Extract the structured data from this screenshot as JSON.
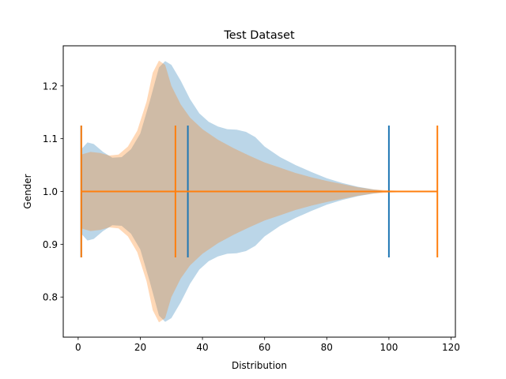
{
  "chart_data": {
    "type": "violin",
    "orientation": "horizontal",
    "title": "Test Dataset",
    "xlabel": "Distribution",
    "ylabel": "Gender",
    "xlim": [
      -4.8,
      121.4
    ],
    "ylim": [
      0.724,
      1.276
    ],
    "xticks": [
      0,
      20,
      40,
      60,
      80,
      100,
      120
    ],
    "yticks": [
      0.8,
      0.9,
      1.0,
      1.1,
      1.2
    ],
    "grid": false,
    "legend": "none",
    "position": 1.0,
    "series": [
      {
        "color": "#1f77b4",
        "fill_opacity": 0.3,
        "min": 1,
        "mean": 35.3,
        "max": 100,
        "density": [
          [
            1,
            0.08
          ],
          [
            3,
            0.093
          ],
          [
            5,
            0.09
          ],
          [
            8,
            0.075
          ],
          [
            11,
            0.064
          ],
          [
            14,
            0.065
          ],
          [
            17,
            0.08
          ],
          [
            20,
            0.11
          ],
          [
            23,
            0.17
          ],
          [
            26,
            0.235
          ],
          [
            28,
            0.247
          ],
          [
            30,
            0.24
          ],
          [
            33,
            0.21
          ],
          [
            36,
            0.175
          ],
          [
            39,
            0.148
          ],
          [
            42,
            0.132
          ],
          [
            45,
            0.123
          ],
          [
            48,
            0.118
          ],
          [
            51,
            0.117
          ],
          [
            54,
            0.113
          ],
          [
            57,
            0.103
          ],
          [
            60,
            0.085
          ],
          [
            65,
            0.065
          ],
          [
            70,
            0.05
          ],
          [
            75,
            0.037
          ],
          [
            80,
            0.025
          ],
          [
            85,
            0.016
          ],
          [
            90,
            0.009
          ],
          [
            95,
            0.004
          ],
          [
            100,
            0.0
          ]
        ]
      },
      {
        "color": "#ff7f0e",
        "fill_opacity": 0.3,
        "min": 1,
        "mean": 31.3,
        "max": 115.6,
        "density": [
          [
            1,
            0.07
          ],
          [
            4,
            0.075
          ],
          [
            7,
            0.073
          ],
          [
            10,
            0.068
          ],
          [
            13,
            0.07
          ],
          [
            16,
            0.085
          ],
          [
            19,
            0.115
          ],
          [
            22,
            0.17
          ],
          [
            24,
            0.225
          ],
          [
            26,
            0.248
          ],
          [
            28,
            0.24
          ],
          [
            30,
            0.2
          ],
          [
            33,
            0.165
          ],
          [
            36,
            0.14
          ],
          [
            40,
            0.118
          ],
          [
            45,
            0.098
          ],
          [
            50,
            0.082
          ],
          [
            55,
            0.068
          ],
          [
            60,
            0.055
          ],
          [
            65,
            0.045
          ],
          [
            70,
            0.035
          ],
          [
            75,
            0.027
          ],
          [
            80,
            0.02
          ],
          [
            85,
            0.014
          ],
          [
            90,
            0.008
          ],
          [
            95,
            0.004
          ],
          [
            100,
            0.002
          ],
          [
            105,
            0.001
          ],
          [
            110,
            0.0005
          ],
          [
            115.6,
            0.0
          ]
        ]
      }
    ]
  }
}
